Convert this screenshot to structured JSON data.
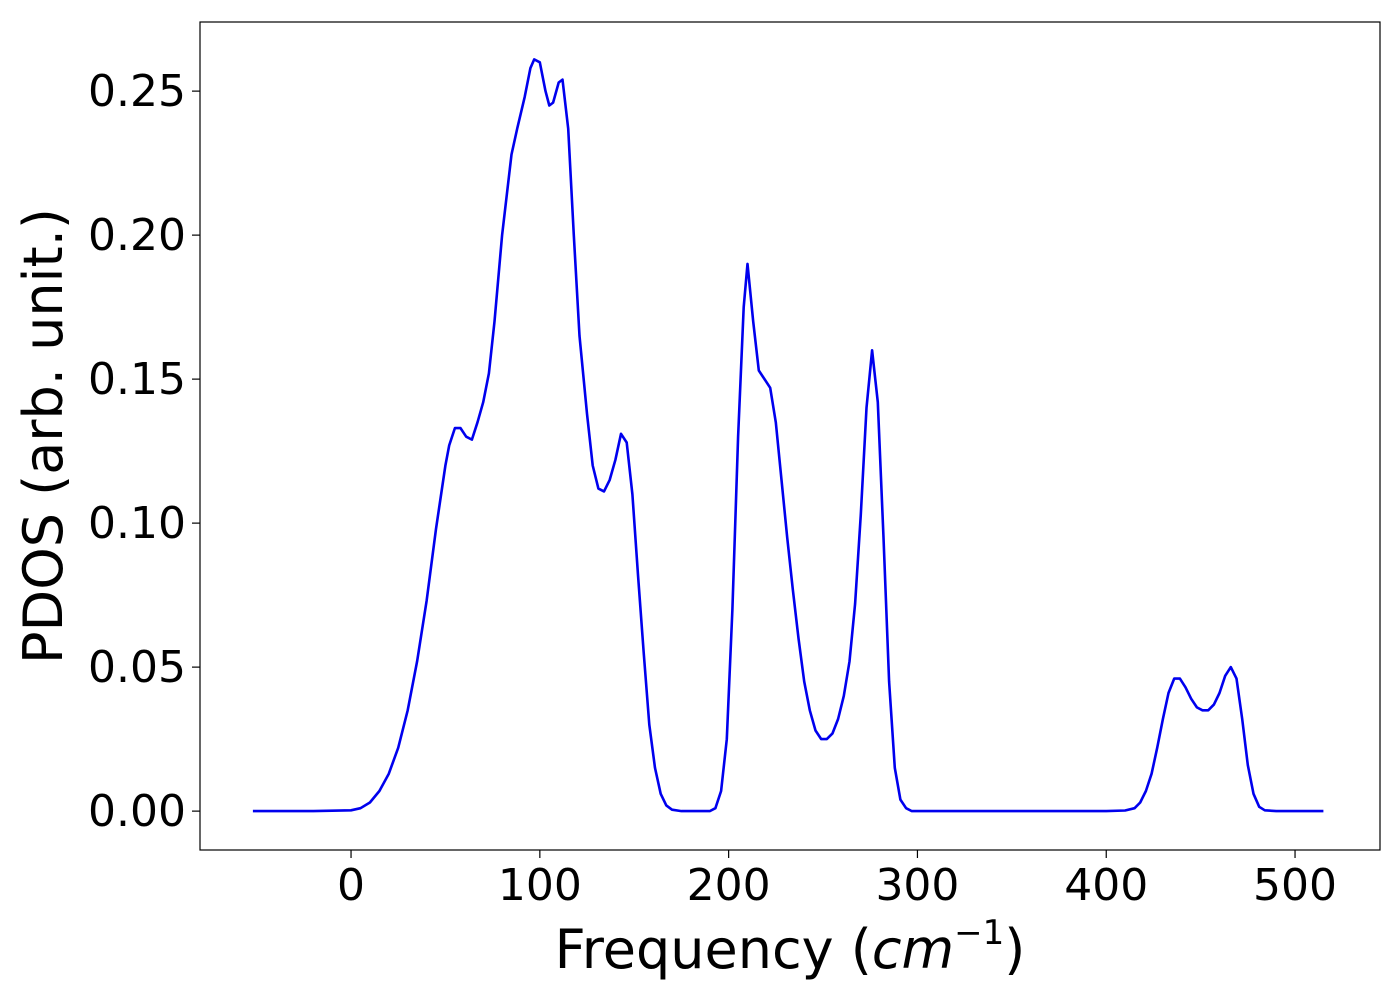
{
  "chart_data": {
    "type": "line",
    "title": "",
    "xlabel": "Frequency",
    "xlabel_unit_base": "cm",
    "xlabel_unit_exp": "−1",
    "ylabel": "PDOS (arb. unit.)",
    "xlim": [
      -80,
      545
    ],
    "ylim": [
      -0.0135,
      0.274
    ],
    "xticks": [
      0,
      100,
      200,
      300,
      400,
      500
    ],
    "xtick_labels": [
      "0",
      "100",
      "200",
      "300",
      "400",
      "500"
    ],
    "yticks": [
      0.0,
      0.05,
      0.1,
      0.15,
      0.2,
      0.25
    ],
    "ytick_labels": [
      "0.00",
      "0.05",
      "0.10",
      "0.15",
      "0.20",
      "0.25"
    ],
    "grid": false,
    "series": [
      {
        "color": "#0000ee",
        "x": [
          -52,
          -20,
          0,
          5,
          10,
          15,
          20,
          25,
          30,
          35,
          40,
          45,
          50,
          52,
          55,
          58,
          61,
          64,
          67,
          70,
          73,
          76,
          80,
          85,
          88,
          92,
          95,
          97,
          100,
          103,
          105,
          107,
          110,
          112,
          115,
          118,
          121,
          125,
          128,
          131,
          134,
          137,
          140,
          143,
          146,
          149,
          152,
          155,
          158,
          161,
          164,
          167,
          170,
          175,
          185,
          190,
          193,
          196,
          199,
          202,
          205,
          208,
          210,
          213,
          216,
          219,
          222,
          225,
          228,
          231,
          234,
          237,
          240,
          243,
          246,
          249,
          252,
          255,
          258,
          261,
          264,
          267,
          270,
          273,
          276,
          279,
          282,
          285,
          288,
          291,
          294,
          297,
          300,
          350,
          400,
          410,
          415,
          418,
          421,
          424,
          427,
          430,
          433,
          436,
          439,
          442,
          445,
          448,
          451,
          454,
          457,
          460,
          463,
          466,
          469,
          472,
          475,
          478,
          481,
          484,
          490,
          515
        ],
        "y": [
          0.0,
          0.0,
          0.0003,
          0.001,
          0.003,
          0.007,
          0.013,
          0.022,
          0.035,
          0.052,
          0.073,
          0.098,
          0.12,
          0.127,
          0.133,
          0.133,
          0.13,
          0.129,
          0.135,
          0.142,
          0.152,
          0.17,
          0.2,
          0.228,
          0.237,
          0.248,
          0.258,
          0.261,
          0.26,
          0.25,
          0.245,
          0.246,
          0.253,
          0.254,
          0.237,
          0.2,
          0.165,
          0.138,
          0.12,
          0.112,
          0.111,
          0.115,
          0.122,
          0.131,
          0.128,
          0.11,
          0.082,
          0.055,
          0.03,
          0.015,
          0.006,
          0.002,
          0.0005,
          0.0,
          0.0,
          0.0,
          0.001,
          0.007,
          0.025,
          0.07,
          0.13,
          0.175,
          0.19,
          0.17,
          0.153,
          0.15,
          0.147,
          0.135,
          0.115,
          0.095,
          0.077,
          0.06,
          0.045,
          0.035,
          0.028,
          0.025,
          0.025,
          0.027,
          0.032,
          0.04,
          0.052,
          0.072,
          0.103,
          0.14,
          0.16,
          0.142,
          0.095,
          0.045,
          0.015,
          0.004,
          0.001,
          0.0,
          0.0,
          0.0,
          0.0,
          0.0002,
          0.001,
          0.003,
          0.007,
          0.013,
          0.022,
          0.032,
          0.041,
          0.046,
          0.046,
          0.043,
          0.039,
          0.036,
          0.035,
          0.035,
          0.037,
          0.041,
          0.047,
          0.05,
          0.046,
          0.032,
          0.016,
          0.006,
          0.0015,
          0.0003,
          0.0,
          0.0
        ]
      }
    ]
  }
}
